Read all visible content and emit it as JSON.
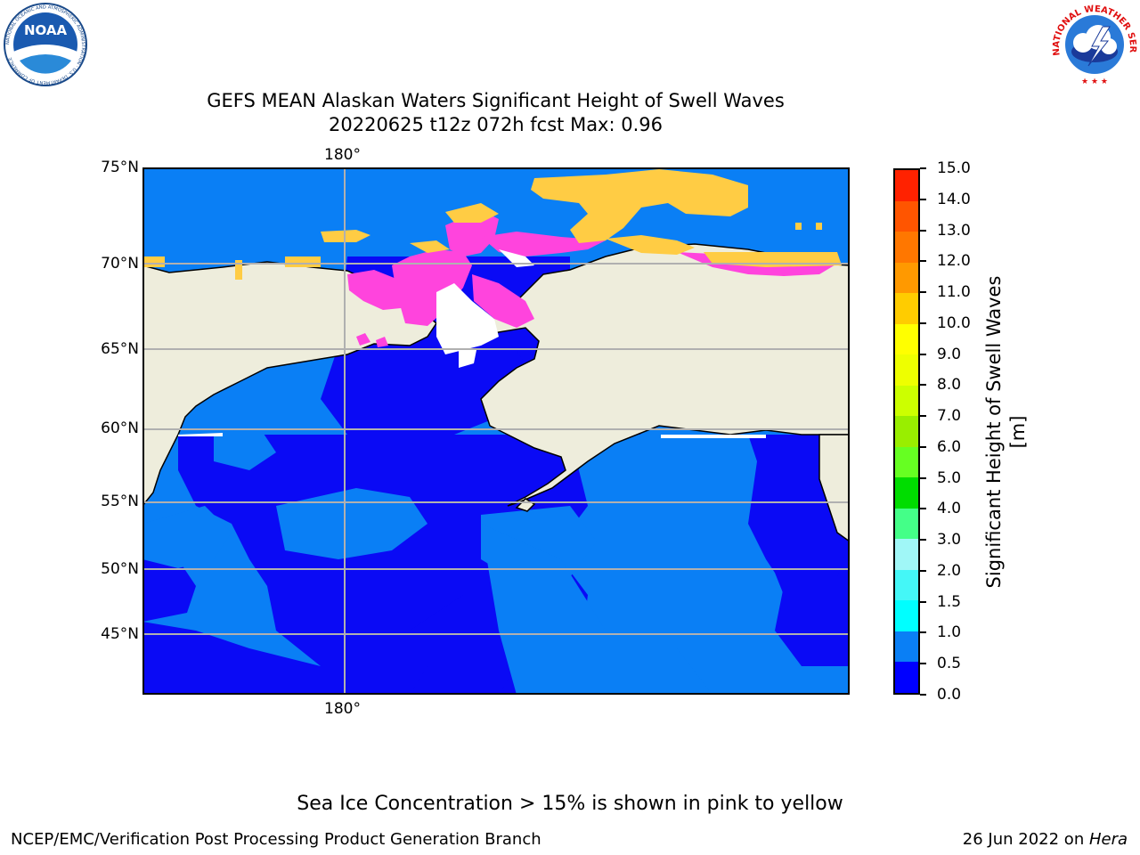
{
  "title_line1": "GEFS MEAN Alaskan Waters Significant Height of Swell Waves",
  "title_line2": "20220625 t12z 072h fcst   Max: 0.96",
  "map": {
    "lat_labels": [
      "75°N",
      "70°N",
      "65°N",
      "60°N",
      "55°N",
      "50°N",
      "45°N"
    ],
    "lon_label_top": "180°",
    "lon_label_bottom": "180°",
    "colors": {
      "ocean_dark": "#0a0af5",
      "ocean_light": "#0a7ff5",
      "land": "#eeeddc",
      "ice_pink": "#ff44dd",
      "ice_yellow": "#ffcc44",
      "grid": "#b0b0b0"
    }
  },
  "colorbar": {
    "title": "Significant Height of Swell Waves [m]",
    "ticks": [
      "0.0",
      "0.5",
      "1.0",
      "1.5",
      "2.0",
      "3.0",
      "4.0",
      "5.0",
      "6.0",
      "7.0",
      "8.0",
      "9.0",
      "10.0",
      "11.0",
      "12.0",
      "13.0",
      "14.0",
      "15.0"
    ],
    "colors": [
      "#0000ff",
      "#0a7ff5",
      "#00ffff",
      "#44f7f7",
      "#a0f7f7",
      "#44ff88",
      "#00dd00",
      "#66ff22",
      "#99ee00",
      "#ccff00",
      "#eeff00",
      "#ffff00",
      "#ffcc00",
      "#ff9900",
      "#ff7700",
      "#ff5500",
      "#ff2200",
      "#ff0000"
    ]
  },
  "note": "Sea Ice Concentration > 15% is shown in pink to yellow",
  "footer_left": "NCEP/EMC/Verification Post Processing Product Generation Branch",
  "footer_date": "26 Jun 2022 on ",
  "footer_machine": "Hera",
  "logos": {
    "noaa_text": "NOAA",
    "noaa_ring": "NATIONAL OCEANIC AND ATMOSPHERIC ADMINISTRATION · U.S. DEPARTMENT OF COMMERCE",
    "nws_ring": "NATIONAL WEATHER SERVICE"
  }
}
